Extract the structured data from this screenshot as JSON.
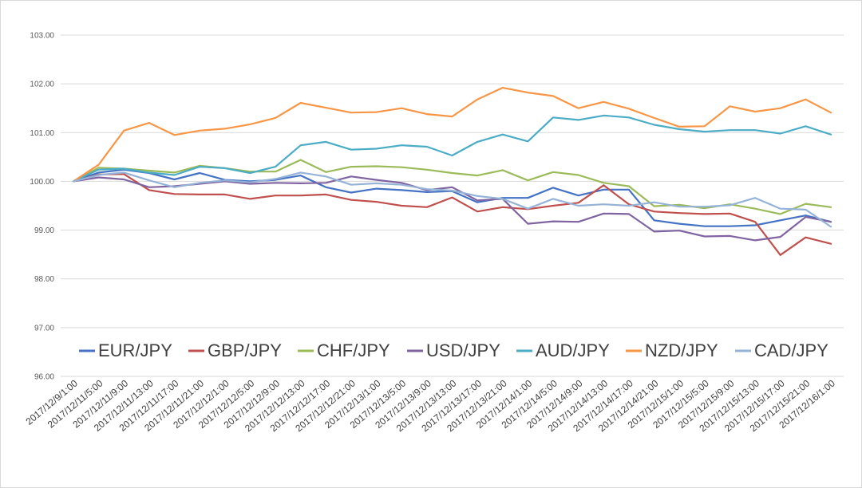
{
  "chart_data": {
    "type": "line",
    "title": "",
    "xlabel": "",
    "ylabel": "",
    "ylim": [
      96,
      103
    ],
    "yticks": [
      "96.00",
      "97.00",
      "98.00",
      "99.00",
      "100.00",
      "101.00",
      "102.00",
      "103.00"
    ],
    "grid": "horizontal",
    "legend_position": "bottom-inside",
    "x_tick_labels": [
      "2017/12/9/1:00",
      "2017/12/11/5:00",
      "2017/12/11/9:00",
      "2017/12/11/13:00",
      "2017/12/11/17:00",
      "2017/12/11/21:00",
      "2017/12/12/1:00",
      "2017/12/12/5:00",
      "2017/12/12/9:00",
      "2017/12/12/13:00",
      "2017/12/12/17:00",
      "2017/12/12/21:00",
      "2017/12/13/1:00",
      "2017/12/13/5:00",
      "2017/12/13/9:00",
      "2017/12/13/13:00",
      "2017/12/13/17:00",
      "2017/12/13/21:00",
      "2017/12/14/1:00",
      "2017/12/14/5:00",
      "2017/12/14/9:00",
      "2017/12/14/13:00",
      "2017/12/14/17:00",
      "2017/12/14/21:00",
      "2017/12/15/1:00",
      "2017/12/15/5:00",
      "2017/12/15/9:00",
      "2017/12/15/13:00",
      "2017/12/15/17:00",
      "2017/12/15/21:00",
      "2017/12/16/1:00"
    ],
    "series": [
      {
        "name": "EUR/JPY",
        "color": "#4472c4",
        "values": [
          100.0,
          100.18,
          100.24,
          100.17,
          100.04,
          100.17,
          100.03,
          100.0,
          100.03,
          100.12,
          99.88,
          99.77,
          99.85,
          99.82,
          99.78,
          99.8,
          99.57,
          99.66,
          99.66,
          99.87,
          99.71,
          99.83,
          99.83,
          99.2,
          99.13,
          99.08,
          99.08,
          99.1,
          99.2,
          99.3,
          99.17
        ]
      },
      {
        "name": "GBP/JPY",
        "color": "#c0504d",
        "values": [
          100.0,
          100.14,
          100.15,
          99.82,
          99.74,
          99.73,
          99.73,
          99.64,
          99.71,
          99.71,
          99.73,
          99.62,
          99.58,
          99.5,
          99.47,
          99.67,
          99.38,
          99.47,
          99.43,
          99.5,
          99.56,
          99.92,
          99.53,
          99.38,
          99.35,
          99.33,
          99.34,
          99.17,
          98.49,
          98.85,
          98.72
        ]
      },
      {
        "name": "CHF/JPY",
        "color": "#9bbb59",
        "values": [
          100.0,
          100.28,
          100.26,
          100.22,
          100.18,
          100.32,
          100.27,
          100.2,
          100.2,
          100.44,
          100.19,
          100.3,
          100.31,
          100.29,
          100.24,
          100.17,
          100.12,
          100.23,
          100.02,
          100.19,
          100.13,
          99.97,
          99.9,
          99.49,
          99.52,
          99.45,
          99.53,
          99.44,
          99.33,
          99.54,
          99.47
        ]
      },
      {
        "name": "USD/JPY",
        "color": "#8064a2",
        "values": [
          100.0,
          100.08,
          100.04,
          99.88,
          99.9,
          99.95,
          100.0,
          99.95,
          99.97,
          99.96,
          99.97,
          100.1,
          100.03,
          99.97,
          99.82,
          99.88,
          99.61,
          99.64,
          99.13,
          99.18,
          99.17,
          99.34,
          99.33,
          98.97,
          98.99,
          98.87,
          98.88,
          98.79,
          98.86,
          99.27,
          99.17
        ]
      },
      {
        "name": "AUD/JPY",
        "color": "#4bacc6",
        "values": [
          100.0,
          100.24,
          100.26,
          100.18,
          100.13,
          100.3,
          100.27,
          100.17,
          100.3,
          100.74,
          100.81,
          100.65,
          100.67,
          100.74,
          100.71,
          100.53,
          100.81,
          100.96,
          100.82,
          101.31,
          101.26,
          101.35,
          101.31,
          101.16,
          101.07,
          101.02,
          101.05,
          101.05,
          100.98,
          101.13,
          100.96
        ]
      },
      {
        "name": "NZD/JPY",
        "color": "#f79646",
        "values": [
          100.0,
          100.34,
          101.04,
          101.2,
          100.95,
          101.04,
          101.08,
          101.17,
          101.3,
          101.61,
          101.51,
          101.41,
          101.42,
          101.5,
          101.38,
          101.33,
          101.68,
          101.92,
          101.82,
          101.75,
          101.5,
          101.63,
          101.49,
          101.3,
          101.12,
          101.13,
          101.54,
          101.43,
          101.5,
          101.68,
          101.41
        ]
      },
      {
        "name": "CAD/JPY",
        "color": "#95b3d7",
        "values": [
          100.0,
          100.13,
          100.18,
          100.02,
          99.88,
          99.97,
          100.02,
          99.98,
          100.05,
          100.18,
          100.1,
          99.93,
          99.96,
          99.93,
          99.84,
          99.81,
          99.7,
          99.64,
          99.44,
          99.64,
          99.5,
          99.53,
          99.5,
          99.57,
          99.48,
          99.48,
          99.51,
          99.66,
          99.44,
          99.42,
          99.07
        ]
      }
    ]
  }
}
